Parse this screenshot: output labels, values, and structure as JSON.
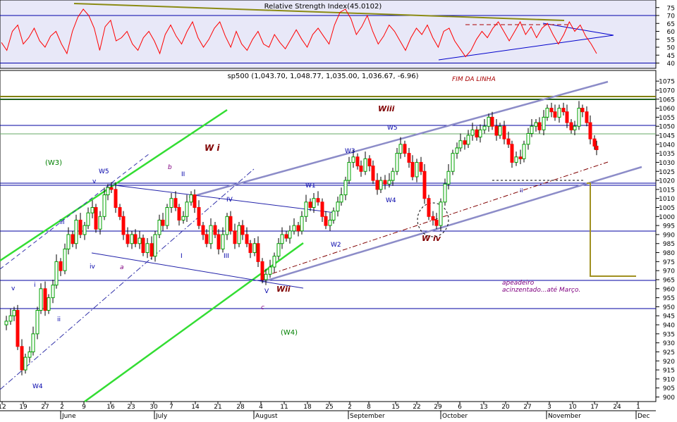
{
  "rsi": {
    "title": "Relative Strength Index(45.0102)",
    "y_ticks": [
      "75",
      "70",
      "65",
      "60",
      "55",
      "50",
      "45",
      "40"
    ],
    "ylim": [
      38,
      78
    ],
    "upper_line": 70,
    "lower_line": 40,
    "colors": {
      "bg": "#e8e8f8",
      "line": "#ff0000",
      "band": "#0000aa",
      "olive": "#8b8b14"
    }
  },
  "price": {
    "title": "sp500 (1,043.70, 1,048.77, 1,035.00, 1,036.67, -6.96)",
    "y_ticks": [
      "1075",
      "1070",
      "1065",
      "1060",
      "1055",
      "1050",
      "1045",
      "1040",
      "1035",
      "1030",
      "1025",
      "1020",
      "1015",
      "1010",
      "1005",
      "1000",
      "995",
      "990",
      "985",
      "980",
      "975",
      "970",
      "965",
      "960",
      "955",
      "950",
      "945",
      "940",
      "935",
      "930",
      "925",
      "920",
      "915",
      "910",
      "905",
      "900"
    ],
    "ylim": [
      898,
      1078
    ],
    "colors": {
      "up": "#00a000",
      "down": "#ff0000",
      "wick": "#000000",
      "hline": "#0000a0",
      "green_channel": "#33dd33",
      "blue_channel": "#8c8cc8",
      "olive": "#808000",
      "annotation_dark": "#800000"
    }
  },
  "x_axis": {
    "day_labels": [
      "12",
      "19",
      "27",
      "2",
      "9",
      "16",
      "23",
      "30",
      "7",
      "14",
      "21",
      "28",
      "4",
      "11",
      "18",
      "25",
      "2",
      "8",
      "15",
      "22",
      "29",
      "6",
      "13",
      "20",
      "27",
      "3",
      "10",
      "17",
      "24",
      "1"
    ],
    "month_labels": [
      "June",
      "July",
      "August",
      "September",
      "October",
      "November",
      "Dec"
    ]
  },
  "annotations": {
    "fim": "FIM DA LINHA",
    "wiii": "Wiii",
    "wi": "W i",
    "wii": "Wii",
    "wiv": "W iv",
    "w3_paren": "(W3)",
    "w4_paren": "(W4)",
    "w5": "W5",
    "w3": "W3",
    "w1": "W1",
    "w2": "W2",
    "w4": "W4",
    "w4_low": "W4",
    "w5_left": "W5",
    "v_left": "v",
    "v_top": "v",
    "iii_left": "iii",
    "i_left": "i",
    "ii_left": "ii",
    "iv_left": "iv",
    "a_left": "a",
    "b_top": "b",
    "ii_roman": "II",
    "i_roman": "I",
    "iii_roman": "III",
    "iv_roman": "IV",
    "v_cap": "V",
    "c_low": "c",
    "ii_small": "ii",
    "apeadeiro_1": "apeadeiro",
    "apeadeiro_2": "acinzentado...até Março."
  },
  "chart_data": [
    {
      "type": "line",
      "title": "Relative Strength Index(45.0102)",
      "ylim": [
        38,
        78
      ],
      "y_ticks": [
        75,
        70,
        65,
        60,
        55,
        50,
        45,
        40
      ],
      "series": [
        {
          "name": "Relative Strength Index",
          "values": [
            53,
            48,
            60,
            64,
            52,
            56,
            62,
            54,
            50,
            57,
            60,
            52,
            46,
            60,
            69,
            74,
            70,
            62,
            48,
            63,
            67,
            54,
            56,
            60,
            52,
            48,
            56,
            60,
            54,
            46,
            58,
            64,
            57,
            52,
            60,
            66,
            56,
            50,
            55,
            62,
            66,
            57,
            50,
            60,
            52,
            48,
            55,
            60,
            52,
            50,
            58,
            53,
            49,
            55,
            61,
            55,
            50,
            58,
            62,
            57,
            52,
            64,
            72,
            74,
            68,
            58,
            63,
            70,
            60,
            52,
            57,
            64,
            60,
            54,
            48,
            56,
            62,
            58,
            64,
            56,
            50,
            60,
            62,
            54,
            49,
            44,
            48,
            55,
            60,
            56,
            62,
            66,
            60,
            54,
            60,
            66,
            58,
            63,
            56,
            62,
            65,
            58,
            52,
            58,
            66,
            60,
            64,
            57,
            52,
            46
          ]
        }
      ],
      "horizontal_lines": [
        70,
        40
      ]
    },
    {
      "type": "candlestick",
      "title": "sp500 (1,043.70, 1,048.77, 1,035.00, 1,036.67, -6.96)",
      "ylim": [
        898,
        1078
      ],
      "x_ticks": [
        "12",
        "19",
        "27",
        "2",
        "9",
        "16",
        "23",
        "30",
        "7",
        "14",
        "21",
        "28",
        "4",
        "11",
        "18",
        "25",
        "2",
        "8",
        "15",
        "22",
        "29",
        "6",
        "13",
        "20",
        "27",
        "3",
        "10",
        "17",
        "24",
        "1"
      ],
      "month_labels": [
        "June",
        "July",
        "August",
        "September",
        "October",
        "November",
        "Dec"
      ],
      "last_close": 1036.67,
      "horizontal_levels": [
        1063,
        1049,
        1017,
        991,
        962,
        948
      ]
    }
  ]
}
